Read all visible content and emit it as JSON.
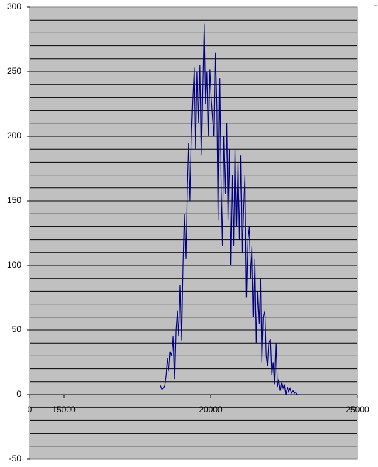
{
  "chart_data": {
    "type": "line",
    "x": [
      18290,
      18338,
      18386,
      18434,
      18482,
      18530,
      18578,
      18626,
      18674,
      18722,
      18770,
      18818,
      18866,
      18914,
      18962,
      19010,
      19058,
      19106,
      19154,
      19202,
      19250,
      19298,
      19346,
      19394,
      19442,
      19490,
      19538,
      19586,
      19634,
      19682,
      19730,
      19778,
      19826,
      19874,
      19922,
      19970,
      20018,
      20066,
      20114,
      20162,
      20210,
      20258,
      20306,
      20354,
      20402,
      20450,
      20498,
      20546,
      20594,
      20642,
      20690,
      20738,
      20786,
      20834,
      20882,
      20930,
      20978,
      21026,
      21074,
      21122,
      21170,
      21218,
      21266,
      21314,
      21362,
      21410,
      21458,
      21506,
      21554,
      21602,
      21650,
      21698,
      21746,
      21794,
      21842,
      21890,
      21938,
      21986,
      22034,
      22082,
      22130,
      22178,
      22226,
      22274,
      22322,
      22370,
      22418,
      22466,
      22514,
      22562,
      22610,
      22658,
      22706,
      22754,
      22802,
      22850,
      22898,
      22946,
      22994,
      23042
    ],
    "series": [
      {
        "color": "#000080",
        "values": [
          7,
          4,
          5,
          7,
          15,
          28,
          18,
          33,
          30,
          45,
          12,
          50,
          65,
          45,
          85,
          42,
          100,
          140,
          105,
          160,
          195,
          150,
          200,
          230,
          253,
          190,
          250,
          210,
          255,
          185,
          240,
          287,
          225,
          250,
          200,
          252,
          230,
          215,
          200,
          265,
          225,
          135,
          245,
          160,
          115,
          200,
          155,
          210,
          135,
          190,
          100,
          170,
          115,
          190,
          130,
          180,
          120,
          185,
          110,
          145,
          170,
          75,
          120,
          130,
          90,
          115,
          60,
          105,
          40,
          80,
          55,
          90,
          25,
          60,
          65,
          30,
          22,
          40,
          42,
          15,
          25,
          8,
          40,
          6,
          12,
          3,
          10,
          5,
          8,
          0,
          6,
          2,
          5,
          1,
          3,
          1,
          2,
          0,
          0,
          0
        ]
      }
    ],
    "xticks": [
      0,
      15000,
      20000,
      25000
    ],
    "ylim": [
      -50,
      300
    ],
    "yticks": [
      -50,
      0,
      50,
      100,
      150,
      200,
      250,
      300
    ],
    "ygrid": [
      -50,
      -40,
      -30,
      -20,
      -10,
      0,
      10,
      20,
      30,
      40,
      50,
      60,
      70,
      80,
      90,
      100,
      110,
      120,
      130,
      140,
      150,
      160,
      170,
      180,
      190,
      200,
      210,
      220,
      230,
      240,
      250,
      260,
      270,
      280,
      290,
      300
    ],
    "plot_color": "#c0c0c0",
    "grid": true
  }
}
